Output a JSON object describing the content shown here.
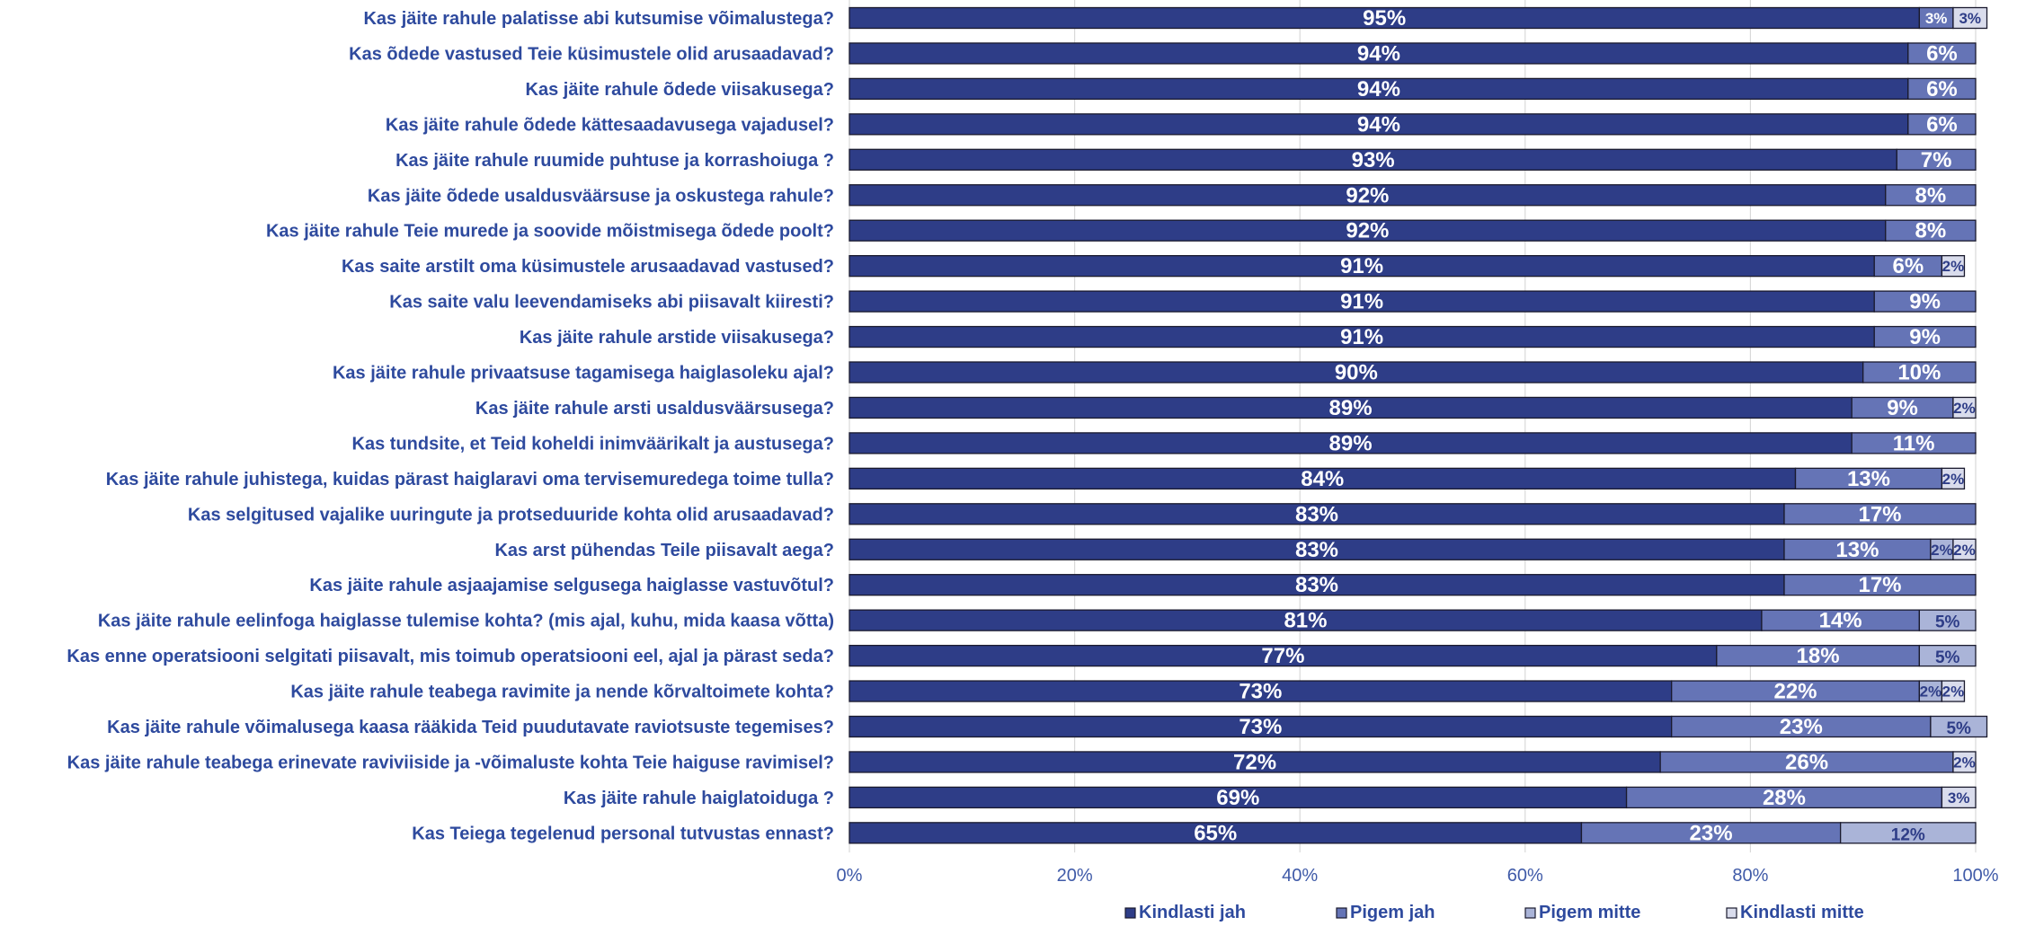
{
  "chart_data": {
    "type": "bar",
    "orientation": "horizontal",
    "stacked": "percent",
    "categories": [
      "Kas jäite rahule palatisse abi kutsumise võimalustega?",
      "Kas õdede vastused Teie küsimustele olid arusaadavad?",
      "Kas jäite rahule õdede viisakusega?",
      "Kas jäite rahule õdede kättesaadavusega vajadusel?",
      "Kas jäite rahule ruumide puhtuse ja korrashoiuga ?",
      "Kas jäite õdede usaldusväärsuse ja  oskustega rahule?",
      "Kas jäite rahule Teie murede ja soovide mõistmisega õdede poolt?",
      "Kas saite arstilt oma küsimustele arusaadavad vastused?",
      "Kas saite valu leevendamiseks abi piisavalt kiiresti?",
      "Kas jäite rahule arstide viisakusega?",
      "Kas jäite rahule privaatsuse tagamisega haiglasoleku ajal?",
      "Kas jäite rahule arsti usaldusväärsusega?",
      "Kas tundsite, et Teid koheldi inimväärikalt ja austusega?",
      "Kas jäite rahule juhistega, kuidas pärast haiglaravi oma tervisemuredega toime tulla?",
      "Kas selgitused vajalike uuringute ja protseduuride kohta olid arusaadavad?",
      "Kas arst pühendas Teile piisavalt aega?",
      "Kas jäite rahule asjaajamise selgusega haiglasse vastuvõtul?",
      "Kas  jäite rahule  eelinfoga haiglasse tulemise kohta? (mis ajal, kuhu, mida kaasa võtta)",
      "Kas enne operatsiooni selgitati piisavalt, mis toimub operatsiooni eel, ajal ja pärast seda?",
      "Kas jäite rahule teabega ravimite ja nende kõrvaltoimete kohta?",
      "Kas jäite rahule võimalusega kaasa rääkida Teid puudutavate raviotsuste tegemises?",
      "Kas jäite rahule teabega erinevate raviviiside ja -võimaluste kohta Teie haiguse ravimisel?",
      "Kas jäite rahule haiglatoiduga ?",
      "Kas Teiega tegelenud personal tutvustas ennast?"
    ],
    "series": [
      {
        "name": "Kindlasti jah",
        "color": "#2e3d87",
        "values": [
          95,
          94,
          94,
          94,
          93,
          92,
          92,
          91,
          91,
          91,
          90,
          89,
          89,
          84,
          83,
          83,
          83,
          81,
          77,
          73,
          73,
          72,
          69,
          65
        ]
      },
      {
        "name": "Pigem jah",
        "color": "#6574b6",
        "values": [
          3,
          6,
          6,
          6,
          7,
          8,
          8,
          6,
          9,
          9,
          10,
          9,
          11,
          13,
          17,
          13,
          17,
          14,
          18,
          22,
          23,
          26,
          28,
          23
        ]
      },
      {
        "name": "Pigem mitte",
        "color": "#aab4d8",
        "values": [
          0,
          0,
          0,
          0,
          0,
          0,
          0,
          0,
          0,
          0,
          0,
          0,
          0,
          0,
          0,
          2,
          0,
          5,
          5,
          2,
          5,
          0,
          0,
          12
        ]
      },
      {
        "name": "Kindlasti mitte",
        "color": "#d9dcec",
        "values": [
          3,
          0,
          0,
          0,
          0,
          0,
          0,
          2,
          0,
          0,
          0,
          2,
          0,
          2,
          0,
          2,
          0,
          0,
          0,
          2,
          0,
          2,
          3,
          0
        ]
      }
    ],
    "data_labels": {
      "Kindlasti jah": [
        "95%",
        "94%",
        "94%",
        "94%",
        "93%",
        "92%",
        "92%",
        "91%",
        "91%",
        "91%",
        "90%",
        "89%",
        "89%",
        "84%",
        "83%",
        "83%",
        "83%",
        "81%",
        "77%",
        "73%",
        "73%",
        "72%",
        "69%",
        "65%"
      ],
      "Pigem jah": [
        "3%",
        "6%",
        "6%",
        "6%",
        "7%",
        "8%",
        "8%",
        "6%",
        "9%",
        "9%",
        "10%",
        "9%",
        "11%",
        "13%",
        "17%",
        "13%",
        "17%",
        "14%",
        "18%",
        "22%",
        "23%",
        "26%",
        "28%",
        "23%"
      ],
      "Pigem mitte": [
        "",
        "",
        "",
        "",
        "",
        "",
        "",
        "",
        "",
        "",
        "",
        "",
        "",
        "",
        "",
        "2%",
        "",
        "5%",
        "5%",
        "2%",
        "5%",
        "",
        "",
        "12%"
      ],
      "Kindlasti mitte": [
        "3%",
        "",
        "",
        "",
        "",
        "",
        "",
        "2%",
        "",
        "",
        "",
        "2%",
        "",
        "2%",
        "",
        "2%",
        "",
        "",
        "",
        "2%",
        "",
        "2%",
        "3%",
        ""
      ]
    },
    "xaxis": {
      "ticks": [
        "0%",
        "20%",
        "40%",
        "60%",
        "80%",
        "100%"
      ],
      "range": [
        0,
        100
      ]
    },
    "grid": true,
    "legend": {
      "position": "bottom",
      "entries": [
        "Kindlasti jah",
        "Pigem jah",
        "Pigem mitte",
        "Kindlasti mitte"
      ]
    },
    "colors": {
      "category_text": "#2e4a9e",
      "axis_text": "#3f5aa8",
      "grid": "#d9d9d9",
      "bar_border": "#1a1a2e"
    }
  }
}
